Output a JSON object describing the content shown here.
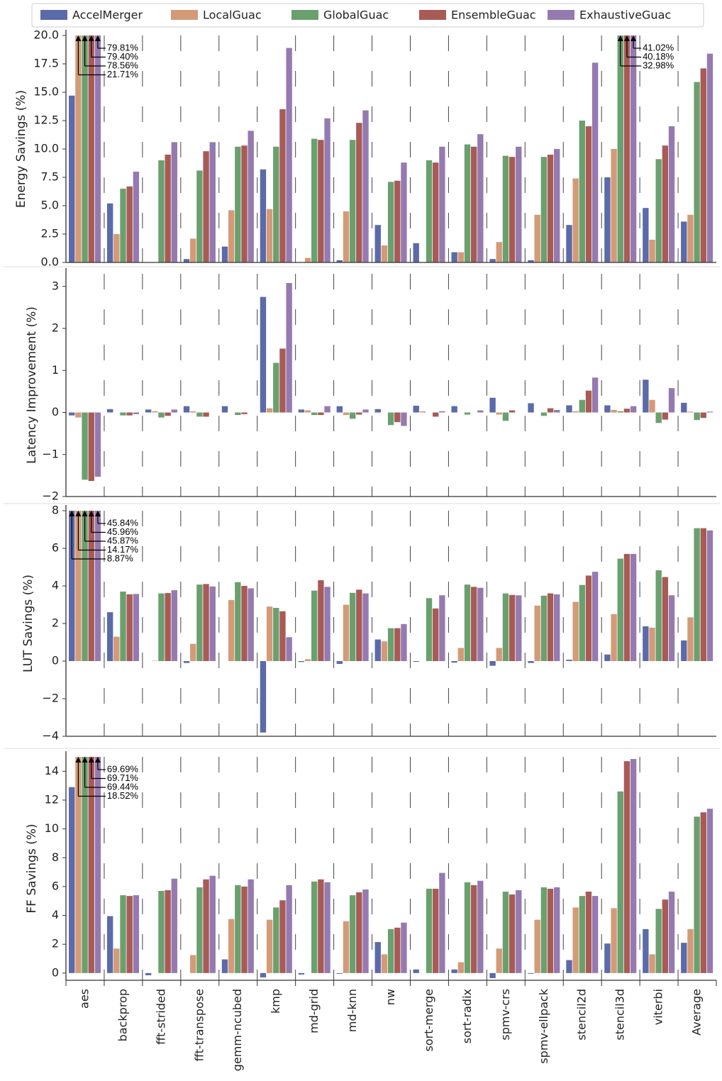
{
  "chart_data": [
    {
      "type": "bar",
      "ylabel": "Energy Savings (%)",
      "ylim": [
        0,
        20
      ],
      "yticks": [
        {
          "value": 0,
          "label": "0.0"
        },
        2.5,
        {
          "value": 5,
          "label": "5.0"
        },
        7.5,
        {
          "value": 10,
          "label": "10.0"
        },
        12.5,
        {
          "value": 15,
          "label": "15.0"
        },
        17.5,
        {
          "value": 20,
          "label": "20.0"
        }
      ],
      "series": [
        {
          "name": "AccelMerger",
          "color": "#5b6aa8",
          "values": [
            14.7,
            5.2,
            0,
            0.3,
            1.4,
            8.2,
            0,
            0.2,
            3.3,
            1.7,
            0.9,
            0.3,
            0.2,
            3.3,
            7.5,
            4.8,
            3.6
          ]
        },
        {
          "name": "LocalGuac",
          "color": "#d49a78",
          "values": [
            21.71,
            2.5,
            0,
            2.1,
            4.6,
            4.7,
            0.4,
            4.5,
            1.5,
            0,
            0.9,
            1.8,
            4.2,
            7.4,
            10.0,
            2.0,
            4.2
          ],
          "value_labels": [
            "21.71%",
            null,
            null,
            null,
            null,
            null,
            null,
            null,
            null,
            null,
            null,
            null,
            null,
            null,
            null,
            null,
            null
          ]
        },
        {
          "name": "GlobalGuac",
          "color": "#6aa06e",
          "values": [
            78.56,
            6.5,
            9.0,
            8.1,
            10.2,
            10.2,
            10.9,
            10.8,
            7.1,
            9.0,
            10.4,
            9.4,
            9.3,
            12.5,
            32.98,
            9.1,
            15.9
          ],
          "value_labels": [
            "78.56%",
            null,
            null,
            null,
            null,
            null,
            null,
            null,
            null,
            null,
            null,
            null,
            null,
            null,
            "32.98%",
            null,
            null
          ]
        },
        {
          "name": "EnsembleGuac",
          "color": "#a85a55",
          "values": [
            79.4,
            6.7,
            9.5,
            9.8,
            10.3,
            13.5,
            10.8,
            12.3,
            7.2,
            8.8,
            10.2,
            9.3,
            9.5,
            12.0,
            40.18,
            10.3,
            17.1
          ],
          "value_labels": [
            "79.40%",
            null,
            null,
            null,
            null,
            null,
            null,
            null,
            null,
            null,
            null,
            null,
            null,
            null,
            "40.18%",
            null,
            null
          ]
        },
        {
          "name": "ExhaustiveGuac",
          "color": "#957ab0",
          "values": [
            79.81,
            8.0,
            10.6,
            10.6,
            11.6,
            18.9,
            12.7,
            13.4,
            8.8,
            10.2,
            11.3,
            10.2,
            10.0,
            17.6,
            41.02,
            12.0,
            18.4
          ],
          "value_labels": [
            "79.81%",
            null,
            null,
            null,
            null,
            null,
            null,
            null,
            null,
            null,
            null,
            null,
            null,
            null,
            "41.02%",
            null,
            null
          ]
        }
      ]
    },
    {
      "type": "bar",
      "ylabel": "Latency Improvement (%)",
      "ylim": [
        -2,
        3.3
      ],
      "yticks": [
        {
          "value": -2,
          "label": "−2"
        },
        {
          "value": -1,
          "label": "−1"
        },
        0,
        1,
        2,
        3
      ],
      "series": [
        {
          "values": [
            -0.07,
            0.08,
            0.07,
            0.15,
            0.15,
            2.75,
            0.07,
            0.15,
            0.08,
            0.16,
            0.15,
            0.35,
            0.22,
            0.17,
            0.17,
            0.78,
            0.23
          ]
        },
        {
          "values": [
            -0.12,
            0,
            0.03,
            0.03,
            0,
            0.1,
            0.05,
            -0.06,
            0,
            0.03,
            0,
            -0.05,
            0,
            0.03,
            0.06,
            0.3,
            0.02
          ]
        },
        {
          "values": [
            -1.6,
            -0.07,
            -0.12,
            -0.1,
            -0.06,
            1.18,
            -0.06,
            -0.15,
            -0.3,
            0,
            -0.05,
            -0.2,
            -0.08,
            0.3,
            0.03,
            -0.25,
            -0.18
          ]
        },
        {
          "values": [
            -1.63,
            -0.07,
            -0.08,
            -0.1,
            -0.04,
            1.52,
            -0.06,
            -0.05,
            -0.23,
            -0.1,
            0,
            0.05,
            0.1,
            0.52,
            0.09,
            -0.17,
            -0.13
          ]
        },
        {
          "values": [
            -1.53,
            -0.04,
            0.07,
            0,
            0,
            3.08,
            0.15,
            0.07,
            -0.32,
            0.03,
            0.05,
            0,
            0.06,
            0.83,
            0.15,
            0.58,
            0.02
          ]
        }
      ]
    },
    {
      "type": "bar",
      "ylabel": "LUT Savings (%)",
      "ylim": [
        -4,
        8
      ],
      "yticks": [
        {
          "value": -4,
          "label": "−4"
        },
        {
          "value": -2,
          "label": "−2"
        },
        0,
        2,
        4,
        6,
        8
      ],
      "series": [
        {
          "values": [
            8.87,
            2.6,
            0,
            -0.1,
            0,
            -3.8,
            -0.05,
            -0.15,
            1.15,
            -0.04,
            -0.08,
            -0.25,
            -0.1,
            0.07,
            0.35,
            1.85,
            1.1
          ],
          "value_labels": [
            "8.87%",
            null,
            null,
            null,
            null,
            null,
            null,
            null,
            null,
            null,
            null,
            null,
            null,
            null,
            null,
            null,
            null
          ]
        },
        {
          "values": [
            14.17,
            1.3,
            0.02,
            0.92,
            3.25,
            2.9,
            0.1,
            3.0,
            1.05,
            0,
            0.7,
            0.7,
            2.95,
            3.15,
            2.5,
            1.78,
            2.33
          ],
          "value_labels": [
            "14.17%",
            null,
            null,
            null,
            null,
            null,
            null,
            null,
            null,
            null,
            null,
            null,
            null,
            null,
            null,
            null,
            null
          ]
        },
        {
          "values": [
            45.87,
            3.7,
            3.6,
            4.07,
            4.2,
            2.83,
            3.75,
            3.63,
            1.75,
            3.35,
            4.07,
            3.6,
            3.48,
            4.05,
            5.45,
            4.83,
            7.07
          ],
          "value_labels": [
            "45.87%",
            null,
            null,
            null,
            null,
            null,
            null,
            null,
            null,
            null,
            null,
            null,
            null,
            null,
            null,
            null,
            null
          ]
        },
        {
          "values": [
            45.96,
            3.55,
            3.62,
            4.1,
            4.0,
            2.65,
            4.3,
            3.8,
            1.75,
            2.8,
            3.95,
            3.52,
            3.6,
            4.55,
            5.7,
            4.47,
            7.07
          ],
          "value_labels": [
            "45.96%",
            null,
            null,
            null,
            null,
            null,
            null,
            null,
            null,
            null,
            null,
            null,
            null,
            null,
            null,
            null,
            null
          ]
        },
        {
          "values": [
            45.84,
            3.57,
            3.77,
            3.97,
            3.87,
            1.27,
            3.95,
            3.6,
            1.97,
            3.5,
            3.9,
            3.5,
            3.55,
            4.75,
            5.7,
            3.5,
            6.95
          ],
          "value_labels": [
            "45.84%",
            null,
            null,
            null,
            null,
            null,
            null,
            null,
            null,
            null,
            null,
            null,
            null,
            null,
            null,
            null,
            null
          ]
        }
      ]
    },
    {
      "type": "bar",
      "ylabel": "FF Savings (%)",
      "ylim": [
        -0.5,
        15
      ],
      "yticks": [
        0,
        2,
        4,
        6,
        8,
        10,
        12,
        14
      ],
      "categories": [
        "aes",
        "backprop",
        "fft-strided",
        "fft-transpose",
        "gemm-ncubed",
        "kmp",
        "md-grid",
        "md-knn",
        "nw",
        "sort-merge",
        "sort-radix",
        "spmv-crs",
        "spmv-ellpack",
        "stencil2d",
        "stencil3d",
        "viterbi",
        "Average"
      ],
      "series": [
        {
          "values": [
            12.9,
            3.95,
            -0.15,
            0,
            0.95,
            -0.3,
            -0.1,
            -0.05,
            2.15,
            0.25,
            0.25,
            -0.35,
            -0.05,
            0.9,
            2.05,
            3.05,
            2.1
          ]
        },
        {
          "values": [
            18.52,
            1.7,
            0,
            1.25,
            3.75,
            3.7,
            0,
            3.6,
            1.3,
            0,
            0.75,
            1.7,
            3.7,
            4.55,
            4.5,
            1.3,
            3.05
          ],
          "value_labels": [
            "18.52%",
            null,
            null,
            null,
            null,
            null,
            null,
            null,
            null,
            null,
            null,
            null,
            null,
            null,
            null,
            null,
            null
          ]
        },
        {
          "values": [
            69.44,
            5.4,
            5.7,
            5.95,
            6.1,
            4.55,
            6.35,
            5.4,
            3.05,
            5.85,
            6.3,
            5.65,
            5.95,
            5.35,
            12.6,
            4.45,
            10.85
          ],
          "value_labels": [
            "69.44%",
            null,
            null,
            null,
            null,
            null,
            null,
            null,
            null,
            null,
            null,
            null,
            null,
            null,
            null,
            null,
            null
          ]
        },
        {
          "values": [
            69.71,
            5.35,
            5.75,
            6.5,
            6.0,
            5.05,
            6.5,
            5.6,
            3.15,
            5.85,
            6.1,
            5.45,
            5.85,
            5.65,
            14.7,
            5.1,
            11.15
          ],
          "value_labels": [
            "69.71%",
            null,
            null,
            null,
            null,
            null,
            null,
            null,
            null,
            null,
            null,
            null,
            null,
            null,
            null,
            null,
            null
          ]
        },
        {
          "values": [
            69.69,
            5.4,
            6.55,
            6.75,
            6.5,
            6.1,
            6.3,
            5.8,
            3.5,
            6.95,
            6.4,
            5.75,
            5.95,
            5.35,
            14.85,
            5.65,
            11.4
          ],
          "value_labels": [
            "69.69%",
            null,
            null,
            null,
            null,
            null,
            null,
            null,
            null,
            null,
            null,
            null,
            null,
            null,
            null,
            null,
            null
          ]
        }
      ]
    }
  ]
}
